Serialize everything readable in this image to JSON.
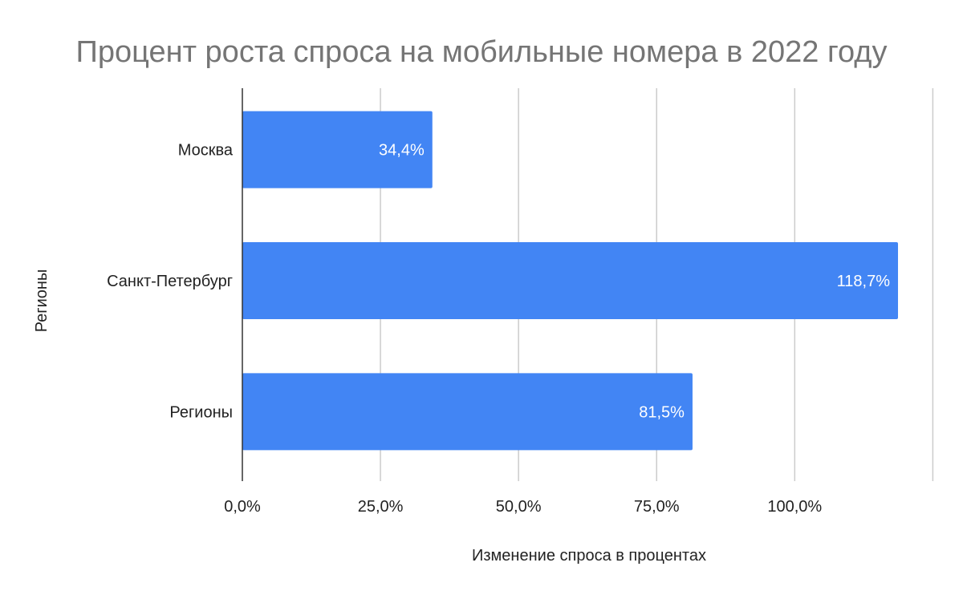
{
  "chart_data": {
    "type": "bar",
    "orientation": "horizontal",
    "title": "Процент роста спроса на мобильные номера в 2022 году",
    "xlabel": "Изменение спроса в процентах",
    "ylabel": "Регионы",
    "categories": [
      "Москва",
      "Санкт-Петербург",
      "Регионы"
    ],
    "values": [
      34.4,
      118.7,
      81.5
    ],
    "value_labels": [
      "34,4%",
      "118,7%",
      "81,5%"
    ],
    "xlim": [
      0,
      125
    ],
    "x_ticks": [
      0,
      25,
      50,
      75,
      100
    ],
    "x_tick_labels": [
      "0,0%",
      "25,0%",
      "50,0%",
      "75,0%",
      "100,0%"
    ],
    "grid": true,
    "bar_color": "#4285f4",
    "legend": "none"
  }
}
